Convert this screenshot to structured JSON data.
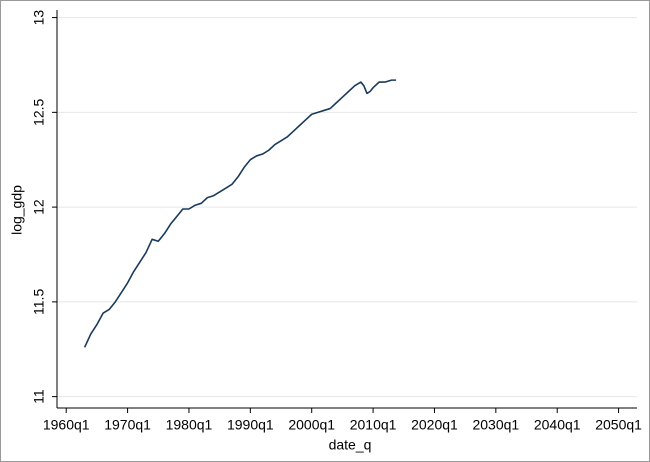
{
  "chart_data": {
    "type": "line",
    "x_label": "date_q",
    "y_label": "log_gdp",
    "x": [
      "1963q1",
      "1964q1",
      "1965q1",
      "1966q1",
      "1967q1",
      "1968q1",
      "1969q1",
      "1970q1",
      "1971q1",
      "1972q1",
      "1973q1",
      "1974q1",
      "1975q1",
      "1976q1",
      "1977q1",
      "1978q1",
      "1979q1",
      "1980q1",
      "1981q1",
      "1982q1",
      "1983q1",
      "1984q1",
      "1985q1",
      "1986q1",
      "1987q1",
      "1988q1",
      "1989q1",
      "1990q1",
      "1991q1",
      "1992q1",
      "1993q1",
      "1994q1",
      "1995q1",
      "1996q1",
      "1997q1",
      "1998q1",
      "1999q1",
      "2000q1",
      "2001q1",
      "2002q1",
      "2003q1",
      "2004q1",
      "2005q1",
      "2006q1",
      "2007q1",
      "2008q1",
      "2008q3",
      "2009q1",
      "2009q3",
      "2010q1",
      "2011q1",
      "2012q1",
      "2013q1",
      "2013q4"
    ],
    "series": [
      {
        "name": "log_gdp",
        "color": "#1a3a5c",
        "values": [
          11.26,
          11.33,
          11.38,
          11.44,
          11.46,
          11.5,
          11.55,
          11.6,
          11.66,
          11.71,
          11.76,
          11.83,
          11.82,
          11.86,
          11.91,
          11.95,
          11.99,
          11.99,
          12.01,
          12.02,
          12.05,
          12.06,
          12.08,
          12.1,
          12.12,
          12.16,
          12.21,
          12.25,
          12.27,
          12.28,
          12.3,
          12.33,
          12.35,
          12.37,
          12.4,
          12.43,
          12.46,
          12.49,
          12.5,
          12.51,
          12.52,
          12.55,
          12.58,
          12.61,
          12.64,
          12.66,
          12.64,
          12.6,
          12.61,
          12.63,
          12.66,
          12.66,
          12.67,
          12.67
        ]
      }
    ],
    "xlim": [
      "1958q3",
      "2053q1"
    ],
    "xticks": [
      "1960q1",
      "1970q1",
      "1980q1",
      "1990q1",
      "2000q1",
      "2010q1",
      "2020q1",
      "2030q1",
      "2040q1",
      "2050q1"
    ],
    "ylim": [
      10.94,
      13.04
    ],
    "yticks": [
      11,
      11.5,
      12,
      12.5,
      13
    ],
    "grid": true
  }
}
